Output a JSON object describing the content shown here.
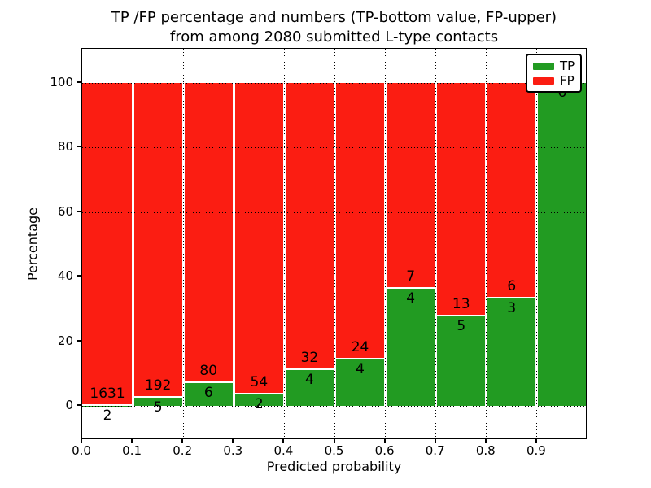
{
  "title": {
    "line1": "TP /FP percentage and numbers (TP-bottom value, FP-upper)",
    "line2": "from among 2080 submitted L-type contacts"
  },
  "axes": {
    "xlabel": "Predicted probability",
    "ylabel": "Percentage",
    "yticks": [
      0,
      20,
      40,
      60,
      80,
      100
    ],
    "xtick_labels": [
      "0.0",
      "0.1",
      "0.2",
      "0.3",
      "0.4",
      "0.5",
      "0.6",
      "0.7",
      "0.8",
      "0.9"
    ],
    "xlim": [
      0.0,
      1.0
    ],
    "ylim": [
      0,
      100
    ],
    "grid_style": "dotted"
  },
  "legend": {
    "position": "upper-right",
    "items": [
      {
        "label": "TP",
        "color": "#229b22"
      },
      {
        "label": "FP",
        "color": "#fb1d12"
      }
    ]
  },
  "chart_data": {
    "type": "bar",
    "variant": "stacked-percentage",
    "title": "TP /FP percentage and numbers (TP-bottom value, FP-upper) from among 2080 submitted L-type contacts",
    "total_contacts": 2080,
    "bin_edges": [
      0.0,
      0.1,
      0.2,
      0.3,
      0.4,
      0.5,
      0.6,
      0.7,
      0.8,
      0.9,
      1.0
    ],
    "categories": [
      "0.0-0.1",
      "0.1-0.2",
      "0.2-0.3",
      "0.3-0.4",
      "0.4-0.5",
      "0.5-0.6",
      "0.6-0.7",
      "0.7-0.8",
      "0.8-0.9",
      "0.9-1.0"
    ],
    "series": [
      {
        "name": "TP",
        "color": "#229b22",
        "counts": [
          2,
          5,
          6,
          2,
          4,
          4,
          4,
          5,
          3,
          6
        ]
      },
      {
        "name": "FP",
        "color": "#fb1d12",
        "counts": [
          1631,
          192,
          80,
          54,
          32,
          24,
          7,
          13,
          6,
          0
        ]
      }
    ],
    "tp_percent": [
      0.12,
      2.54,
      6.98,
      3.57,
      11.11,
      14.29,
      36.36,
      27.78,
      33.33,
      100.0
    ],
    "annotation_rule": "counts drawn at TP/FP boundary of each bar: FP count above boundary, TP count below"
  }
}
